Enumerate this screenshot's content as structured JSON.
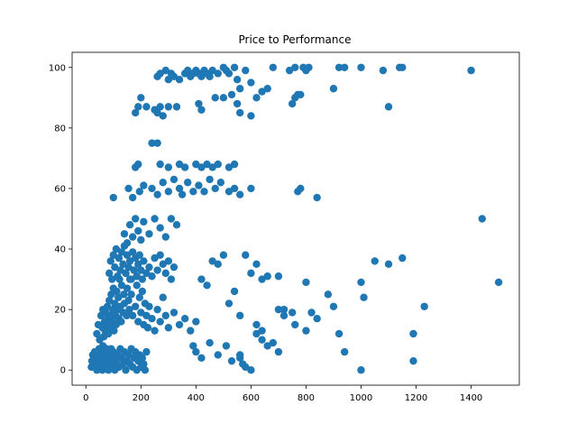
{
  "chart_data": {
    "type": "scatter",
    "title": "Price to Performance",
    "xlabel": "",
    "ylabel": "",
    "xlim": [
      -50,
      1575
    ],
    "ylim": [
      -5,
      105
    ],
    "xticks": [
      0,
      200,
      400,
      600,
      800,
      1000,
      1200,
      1400
    ],
    "yticks": [
      0,
      20,
      40,
      60,
      80,
      100
    ],
    "grid": false,
    "color": "#1f77b4",
    "series": [
      {
        "points": [
          [
            20,
            1
          ],
          [
            22,
            3
          ],
          [
            25,
            5
          ],
          [
            28,
            2
          ],
          [
            30,
            4
          ],
          [
            32,
            6
          ],
          [
            35,
            1
          ],
          [
            38,
            3
          ],
          [
            40,
            0
          ],
          [
            42,
            5
          ],
          [
            45,
            2
          ],
          [
            48,
            7
          ],
          [
            50,
            4
          ],
          [
            52,
            1
          ],
          [
            55,
            6
          ],
          [
            58,
            3
          ],
          [
            60,
            0
          ],
          [
            62,
            8
          ],
          [
            65,
            2
          ],
          [
            68,
            5
          ],
          [
            70,
            1
          ],
          [
            72,
            4
          ],
          [
            75,
            7
          ],
          [
            78,
            2
          ],
          [
            80,
            6
          ],
          [
            82,
            0
          ],
          [
            85,
            3
          ],
          [
            88,
            5
          ],
          [
            90,
            1
          ],
          [
            92,
            7
          ],
          [
            95,
            4
          ],
          [
            98,
            2
          ],
          [
            100,
            6
          ],
          [
            105,
            0
          ],
          [
            110,
            3
          ],
          [
            115,
            5
          ],
          [
            120,
            1
          ],
          [
            125,
            7
          ],
          [
            130,
            4
          ],
          [
            135,
            2
          ],
          [
            140,
            6
          ],
          [
            145,
            0
          ],
          [
            150,
            3
          ],
          [
            155,
            5
          ],
          [
            160,
            2
          ],
          [
            165,
            7
          ],
          [
            170,
            1
          ],
          [
            175,
            4
          ],
          [
            180,
            6
          ],
          [
            185,
            0
          ],
          [
            190,
            3
          ],
          [
            195,
            5
          ],
          [
            200,
            1
          ],
          [
            205,
            4
          ],
          [
            210,
            2
          ],
          [
            215,
            0
          ],
          [
            220,
            6
          ],
          [
            40,
            12
          ],
          [
            45,
            15
          ],
          [
            50,
            10
          ],
          [
            55,
            18
          ],
          [
            60,
            14
          ],
          [
            62,
            20
          ],
          [
            65,
            11
          ],
          [
            68,
            16
          ],
          [
            70,
            13
          ],
          [
            72,
            19
          ],
          [
            75,
            15
          ],
          [
            78,
            21
          ],
          [
            80,
            17
          ],
          [
            82,
            12
          ],
          [
            85,
            23
          ],
          [
            88,
            18
          ],
          [
            90,
            14
          ],
          [
            92,
            25
          ],
          [
            95,
            16
          ],
          [
            98,
            20
          ],
          [
            100,
            27
          ],
          [
            102,
            13
          ],
          [
            105,
            22
          ],
          [
            108,
            18
          ],
          [
            110,
            15
          ],
          [
            112,
            26
          ],
          [
            115,
            20
          ],
          [
            118,
            24
          ],
          [
            120,
            17
          ],
          [
            122,
            30
          ],
          [
            125,
            21
          ],
          [
            128,
            16
          ],
          [
            130,
            28
          ],
          [
            135,
            19
          ],
          [
            138,
            25
          ],
          [
            140,
            22
          ],
          [
            145,
            32
          ],
          [
            148,
            18
          ],
          [
            150,
            27
          ],
          [
            155,
            23
          ],
          [
            158,
            20
          ],
          [
            160,
            30
          ],
          [
            165,
            25
          ],
          [
            170,
            18
          ],
          [
            175,
            33
          ],
          [
            180,
            21
          ],
          [
            185,
            28
          ],
          [
            190,
            16
          ],
          [
            195,
            24
          ],
          [
            200,
            19
          ],
          [
            205,
            26
          ],
          [
            210,
            15
          ],
          [
            215,
            22
          ],
          [
            220,
            18
          ],
          [
            225,
            14
          ],
          [
            230,
            21
          ],
          [
            240,
            17
          ],
          [
            250,
            13
          ],
          [
            260,
            20
          ],
          [
            270,
            16
          ],
          [
            280,
            24
          ],
          [
            290,
            18
          ],
          [
            300,
            14
          ],
          [
            320,
            19
          ],
          [
            340,
            15
          ],
          [
            360,
            17
          ],
          [
            380,
            13
          ],
          [
            400,
            16
          ],
          [
            85,
            32
          ],
          [
            90,
            36
          ],
          [
            95,
            30
          ],
          [
            100,
            38
          ],
          [
            105,
            34
          ],
          [
            110,
            40
          ],
          [
            115,
            31
          ],
          [
            120,
            37
          ],
          [
            125,
            33
          ],
          [
            130,
            39
          ],
          [
            135,
            35
          ],
          [
            140,
            41
          ],
          [
            145,
            32
          ],
          [
            150,
            38
          ],
          [
            155,
            34
          ],
          [
            160,
            36
          ],
          [
            165,
            30
          ],
          [
            170,
            39
          ],
          [
            175,
            33
          ],
          [
            180,
            37
          ],
          [
            185,
            31
          ],
          [
            190,
            35
          ],
          [
            195,
            38
          ],
          [
            200,
            33
          ],
          [
            205,
            30
          ],
          [
            210,
            36
          ],
          [
            220,
            32
          ],
          [
            230,
            34
          ],
          [
            240,
            31
          ],
          [
            250,
            37
          ],
          [
            260,
            33
          ],
          [
            270,
            38
          ],
          [
            280,
            35
          ],
          [
            290,
            32
          ],
          [
            300,
            36
          ],
          [
            310,
            30
          ],
          [
            320,
            34
          ],
          [
            140,
            45
          ],
          [
            150,
            42
          ],
          [
            160,
            48
          ],
          [
            170,
            44
          ],
          [
            180,
            50
          ],
          [
            190,
            46
          ],
          [
            200,
            43
          ],
          [
            210,
            49
          ],
          [
            230,
            45
          ],
          [
            250,
            50
          ],
          [
            270,
            47
          ],
          [
            290,
            44
          ],
          [
            310,
            50
          ],
          [
            330,
            48
          ],
          [
            100,
            57
          ],
          [
            155,
            60
          ],
          [
            170,
            57
          ],
          [
            195,
            59
          ],
          [
            210,
            61
          ],
          [
            240,
            60
          ],
          [
            260,
            58
          ],
          [
            280,
            62
          ],
          [
            300,
            59
          ],
          [
            320,
            63
          ],
          [
            340,
            60
          ],
          [
            350,
            58
          ],
          [
            370,
            62
          ],
          [
            390,
            59
          ],
          [
            410,
            61
          ],
          [
            430,
            59
          ],
          [
            450,
            63
          ],
          [
            470,
            60
          ],
          [
            490,
            62
          ],
          [
            520,
            59
          ],
          [
            540,
            60
          ],
          [
            560,
            58
          ],
          [
            600,
            60
          ],
          [
            180,
            67
          ],
          [
            190,
            68
          ],
          [
            240,
            75
          ],
          [
            260,
            75
          ],
          [
            270,
            68
          ],
          [
            300,
            67
          ],
          [
            340,
            68
          ],
          [
            360,
            67
          ],
          [
            400,
            68
          ],
          [
            420,
            67
          ],
          [
            440,
            68
          ],
          [
            460,
            67
          ],
          [
            480,
            68
          ],
          [
            520,
            67
          ],
          [
            540,
            68
          ],
          [
            180,
            85
          ],
          [
            190,
            87
          ],
          [
            200,
            90
          ],
          [
            220,
            87
          ],
          [
            250,
            86
          ],
          [
            260,
            85
          ],
          [
            270,
            87
          ],
          [
            280,
            84
          ],
          [
            300,
            87
          ],
          [
            330,
            87
          ],
          [
            410,
            88
          ],
          [
            420,
            86
          ],
          [
            470,
            90
          ],
          [
            500,
            90
          ],
          [
            530,
            91
          ],
          [
            550,
            88
          ],
          [
            560,
            85
          ],
          [
            600,
            84
          ],
          [
            620,
            90
          ],
          [
            640,
            92
          ],
          [
            660,
            93
          ],
          [
            760,
            90
          ],
          [
            770,
            91
          ],
          [
            780,
            91
          ],
          [
            750,
            88
          ],
          [
            1100,
            87
          ],
          [
            260,
            97
          ],
          [
            270,
            98
          ],
          [
            290,
            99
          ],
          [
            300,
            96
          ],
          [
            310,
            98
          ],
          [
            320,
            97
          ],
          [
            340,
            96
          ],
          [
            360,
            98
          ],
          [
            370,
            99
          ],
          [
            380,
            97
          ],
          [
            390,
            98
          ],
          [
            400,
            99
          ],
          [
            410,
            98
          ],
          [
            420,
            97
          ],
          [
            430,
            99
          ],
          [
            440,
            98
          ],
          [
            450,
            97
          ],
          [
            460,
            99
          ],
          [
            480,
            98
          ],
          [
            500,
            100
          ],
          [
            510,
            99
          ],
          [
            520,
            98
          ],
          [
            540,
            100
          ],
          [
            550,
            96
          ],
          [
            560,
            93
          ],
          [
            580,
            99
          ],
          [
            600,
            95
          ],
          [
            680,
            100
          ],
          [
            740,
            99
          ],
          [
            760,
            100
          ],
          [
            790,
            100
          ],
          [
            800,
            99
          ],
          [
            810,
            100
          ],
          [
            900,
            93
          ],
          [
            920,
            100
          ],
          [
            940,
            100
          ],
          [
            1000,
            100
          ],
          [
            1080,
            99
          ],
          [
            1140,
            100
          ],
          [
            1150,
            100
          ],
          [
            1400,
            99
          ],
          [
            420,
            30
          ],
          [
            440,
            28
          ],
          [
            460,
            36
          ],
          [
            480,
            35
          ],
          [
            500,
            38
          ],
          [
            520,
            22
          ],
          [
            540,
            26
          ],
          [
            560,
            18
          ],
          [
            580,
            38
          ],
          [
            600,
            32
          ],
          [
            620,
            35
          ],
          [
            640,
            30
          ],
          [
            660,
            31
          ],
          [
            700,
            31
          ],
          [
            720,
            20
          ],
          [
            750,
            19
          ],
          [
            770,
            59
          ],
          [
            780,
            60
          ],
          [
            800,
            29
          ],
          [
            840,
            57
          ],
          [
            880,
            25
          ],
          [
            900,
            21
          ],
          [
            920,
            12
          ],
          [
            940,
            6
          ],
          [
            1000,
            29
          ],
          [
            1010,
            24
          ],
          [
            1050,
            36
          ],
          [
            1100,
            35
          ],
          [
            1150,
            37
          ],
          [
            1190,
            12
          ],
          [
            1190,
            3
          ],
          [
            1230,
            21
          ],
          [
            1440,
            50
          ],
          [
            1500,
            29
          ],
          [
            1000,
            0
          ],
          [
            390,
            8
          ],
          [
            400,
            6
          ],
          [
            420,
            4
          ],
          [
            450,
            9
          ],
          [
            480,
            5
          ],
          [
            510,
            8
          ],
          [
            530,
            3
          ],
          [
            560,
            4
          ],
          [
            580,
            1
          ],
          [
            600,
            0
          ],
          [
            620,
            12
          ],
          [
            640,
            10
          ],
          [
            660,
            8
          ],
          [
            700,
            20
          ],
          [
            720,
            18
          ],
          [
            760,
            15
          ],
          [
            800,
            13
          ],
          [
            820,
            19
          ],
          [
            840,
            17
          ],
          [
            620,
            15
          ],
          [
            640,
            13
          ],
          [
            680,
            9
          ],
          [
            700,
            6
          ],
          [
            560,
            5
          ],
          [
            570,
            2
          ]
        ]
      }
    ]
  }
}
